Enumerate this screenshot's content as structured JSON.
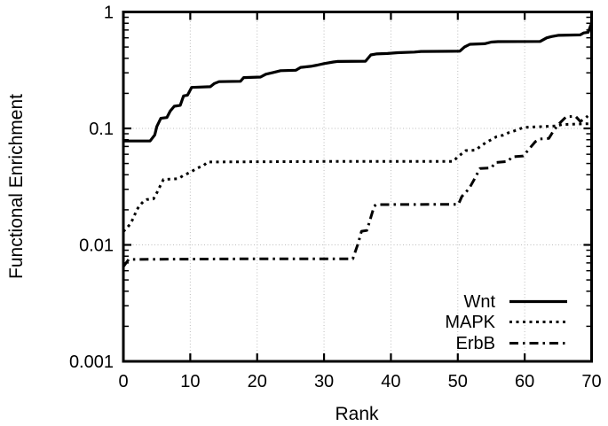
{
  "chart_data": {
    "type": "line",
    "title": "",
    "xlabel": "Rank",
    "ylabel": "Functional Enrichment",
    "x_ticks": [
      0,
      10,
      20,
      30,
      40,
      50,
      60,
      70
    ],
    "y_ticks": [
      "1",
      "0.1",
      "0.01",
      "0.001"
    ],
    "y_tick_values": [
      1,
      0.1,
      0.01,
      0.001
    ],
    "xlim": [
      0,
      70
    ],
    "ylim": [
      0.001,
      1
    ],
    "y_scale": "log",
    "grid": true,
    "legend_position": "bottom-right",
    "colors": {
      "line": "#000000",
      "grid": "#bdbdbd",
      "background": "#ffffff"
    },
    "series": [
      {
        "name": "Wnt",
        "style": "solid",
        "points": [
          [
            0,
            0.078
          ],
          [
            4,
            0.078
          ],
          [
            4.7,
            0.088
          ],
          [
            5,
            0.104
          ],
          [
            5.6,
            0.122
          ],
          [
            6.5,
            0.124
          ],
          [
            7,
            0.141
          ],
          [
            7.6,
            0.155
          ],
          [
            8.5,
            0.158
          ],
          [
            9,
            0.19
          ],
          [
            9.6,
            0.193
          ],
          [
            10.2,
            0.225
          ],
          [
            13,
            0.228
          ],
          [
            13.6,
            0.243
          ],
          [
            14.3,
            0.252
          ],
          [
            17.5,
            0.254
          ],
          [
            18,
            0.273
          ],
          [
            20.5,
            0.276
          ],
          [
            21.3,
            0.292
          ],
          [
            22.5,
            0.303
          ],
          [
            23.5,
            0.313
          ],
          [
            25.8,
            0.316
          ],
          [
            26.5,
            0.334
          ],
          [
            28,
            0.341
          ],
          [
            29,
            0.35
          ],
          [
            30,
            0.36
          ],
          [
            31.4,
            0.372
          ],
          [
            32,
            0.376
          ],
          [
            36.2,
            0.378
          ],
          [
            37,
            0.428
          ],
          [
            37.8,
            0.436
          ],
          [
            39.5,
            0.44
          ],
          [
            41,
            0.447
          ],
          [
            43.5,
            0.452
          ],
          [
            44.5,
            0.458
          ],
          [
            50.3,
            0.46
          ],
          [
            51,
            0.5
          ],
          [
            51.8,
            0.528
          ],
          [
            54,
            0.533
          ],
          [
            55,
            0.551
          ],
          [
            56,
            0.556
          ],
          [
            62.3,
            0.558
          ],
          [
            63.3,
            0.6
          ],
          [
            64,
            0.615
          ],
          [
            65,
            0.63
          ],
          [
            68.3,
            0.635
          ],
          [
            68.8,
            0.66
          ],
          [
            69.5,
            0.67
          ],
          [
            70,
            0.8
          ]
        ]
      },
      {
        "name": "MAPK",
        "style": "dotted",
        "points": [
          [
            0,
            0.013
          ],
          [
            1,
            0.015
          ],
          [
            1.5,
            0.017
          ],
          [
            2,
            0.02
          ],
          [
            2.5,
            0.022
          ],
          [
            3,
            0.0236
          ],
          [
            3.5,
            0.0245
          ],
          [
            4.5,
            0.0248
          ],
          [
            5,
            0.028
          ],
          [
            5.5,
            0.032
          ],
          [
            6,
            0.0365
          ],
          [
            8.2,
            0.037
          ],
          [
            9,
            0.0395
          ],
          [
            10,
            0.042
          ],
          [
            11,
            0.0455
          ],
          [
            12,
            0.048
          ],
          [
            12.6,
            0.0515
          ],
          [
            30,
            0.052
          ],
          [
            49.3,
            0.052
          ],
          [
            50,
            0.057
          ],
          [
            50.8,
            0.062
          ],
          [
            51.2,
            0.0645
          ],
          [
            52.6,
            0.065
          ],
          [
            53.5,
            0.071
          ],
          [
            54.2,
            0.0755
          ],
          [
            55,
            0.08
          ],
          [
            55.8,
            0.085
          ],
          [
            56.8,
            0.0875
          ],
          [
            57.6,
            0.092
          ],
          [
            58.9,
            0.097
          ],
          [
            59.8,
            0.102
          ],
          [
            64.7,
            0.105
          ],
          [
            65.6,
            0.108
          ],
          [
            70,
            0.11
          ]
        ]
      },
      {
        "name": "ErbB",
        "style": "dashdot",
        "points": [
          [
            0,
            0.0065
          ],
          [
            0.8,
            0.0075
          ],
          [
            20,
            0.0076
          ],
          [
            34.3,
            0.0076
          ],
          [
            35.1,
            0.0103
          ],
          [
            35.6,
            0.0131
          ],
          [
            36.4,
            0.0133
          ],
          [
            37.5,
            0.0215
          ],
          [
            37.8,
            0.0222
          ],
          [
            50.1,
            0.0223
          ],
          [
            50.6,
            0.026
          ],
          [
            51.7,
            0.0305
          ],
          [
            52.4,
            0.036
          ],
          [
            53.3,
            0.0452
          ],
          [
            55,
            0.0458
          ],
          [
            55.6,
            0.051
          ],
          [
            57.5,
            0.052
          ],
          [
            58.1,
            0.057
          ],
          [
            59.8,
            0.058
          ],
          [
            60.6,
            0.066
          ],
          [
            61.6,
            0.077
          ],
          [
            62.2,
            0.081
          ],
          [
            63.6,
            0.082
          ],
          [
            64.4,
            0.097
          ],
          [
            65.3,
            0.112
          ],
          [
            66.2,
            0.126
          ],
          [
            67.6,
            0.127
          ],
          [
            68.3,
            0.115
          ],
          [
            69,
            0.121
          ],
          [
            70,
            0.138
          ]
        ]
      }
    ]
  }
}
